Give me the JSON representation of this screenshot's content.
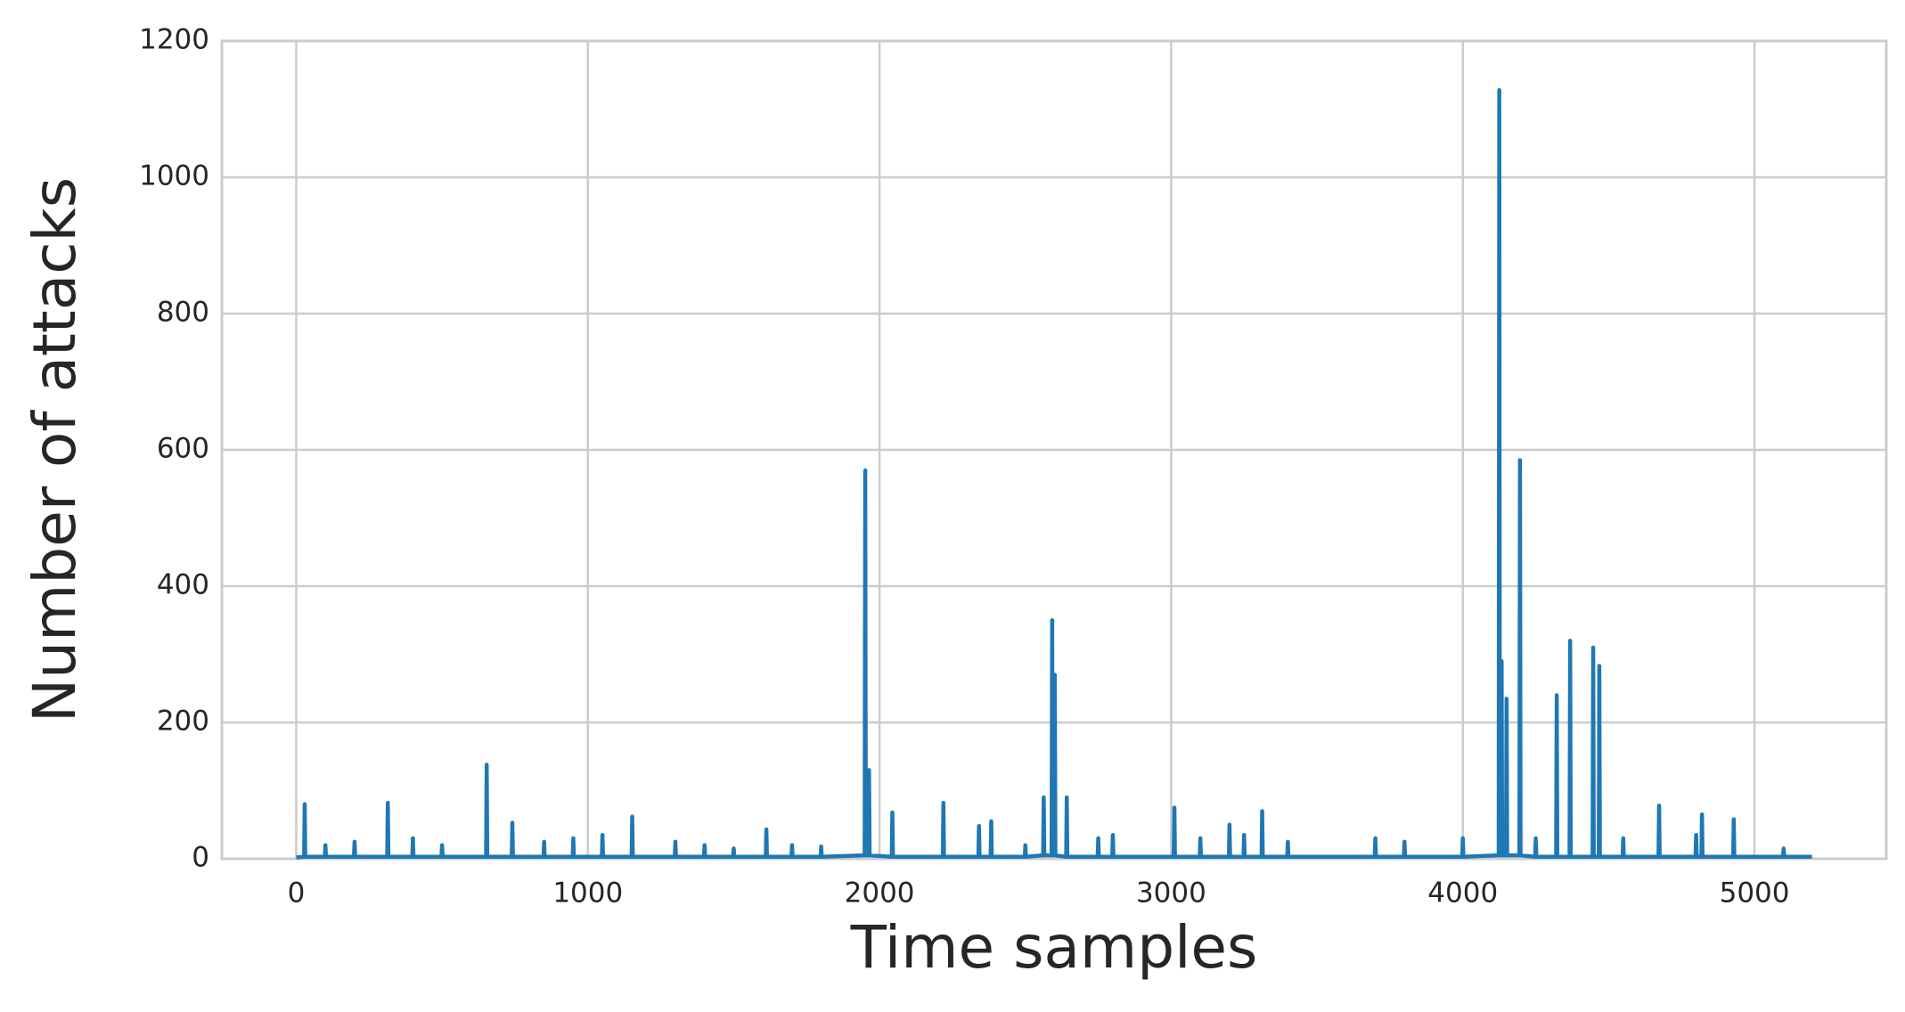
{
  "chart_data": {
    "type": "line",
    "xlabel": "Time samples",
    "ylabel": "Number of attacks",
    "x": [
      0,
      27,
      29,
      31,
      98,
      100,
      102,
      198,
      200,
      202,
      312,
      314,
      316,
      398,
      400,
      402,
      498,
      500,
      502,
      651,
      653,
      655,
      739,
      741,
      743,
      848,
      850,
      852,
      948,
      950,
      952,
      1048,
      1050,
      1052,
      1150,
      1152,
      1154,
      1298,
      1300,
      1302,
      1398,
      1400,
      1402,
      1498,
      1500,
      1502,
      1610,
      1612,
      1614,
      1698,
      1700,
      1702,
      1798,
      1800,
      1802,
      1949,
      1951,
      1953,
      1962,
      1964,
      1966,
      2042,
      2044,
      2046,
      2217,
      2219,
      2221,
      2339,
      2341,
      2343,
      2381,
      2383,
      2385,
      2498,
      2500,
      2502,
      2561,
      2563,
      2565,
      2590,
      2592,
      2594,
      2599,
      2601,
      2603,
      2640,
      2642,
      2644,
      2748,
      2750,
      2752,
      2798,
      2800,
      2802,
      3009,
      3011,
      3013,
      3098,
      3100,
      3102,
      3198,
      3200,
      3202,
      3248,
      3250,
      3252,
      3310,
      3312,
      3314,
      3398,
      3400,
      3402,
      3698,
      3700,
      3702,
      3798,
      3800,
      3802,
      3998,
      4000,
      4002,
      4123,
      4125,
      4127,
      4131,
      4133,
      4135,
      4148,
      4150,
      4152,
      4194,
      4196,
      4198,
      4248,
      4250,
      4252,
      4320,
      4322,
      4324,
      4366,
      4368,
      4370,
      4445,
      4447,
      4449,
      4466,
      4468,
      4470,
      4548,
      4550,
      4552,
      4671,
      4673,
      4675,
      4798,
      4800,
      4802,
      4818,
      4820,
      4822,
      4927,
      4929,
      4931,
      5098,
      5100,
      5102,
      5197
    ],
    "series": [
      {
        "color": "#1f77b4",
        "values": [
          2,
          3,
          80,
          3,
          3,
          20,
          3,
          3,
          25,
          3,
          3,
          82,
          3,
          3,
          30,
          3,
          3,
          20,
          3,
          3,
          138,
          3,
          3,
          53,
          3,
          3,
          25,
          3,
          3,
          30,
          3,
          3,
          35,
          3,
          3,
          62,
          3,
          3,
          25,
          3,
          3,
          20,
          3,
          3,
          15,
          3,
          3,
          43,
          3,
          3,
          20,
          3,
          3,
          18,
          3,
          5,
          570,
          5,
          5,
          130,
          5,
          3,
          68,
          3,
          3,
          82,
          3,
          3,
          48,
          3,
          3,
          55,
          3,
          3,
          20,
          3,
          5,
          90,
          5,
          5,
          350,
          5,
          5,
          270,
          5,
          3,
          90,
          3,
          3,
          30,
          3,
          3,
          35,
          3,
          3,
          75,
          3,
          3,
          30,
          3,
          3,
          50,
          3,
          3,
          35,
          3,
          3,
          70,
          3,
          3,
          25,
          3,
          3,
          30,
          3,
          3,
          25,
          3,
          3,
          30,
          3,
          5,
          1128,
          5,
          5,
          290,
          5,
          5,
          235,
          5,
          5,
          585,
          5,
          3,
          30,
          3,
          3,
          240,
          3,
          3,
          320,
          3,
          3,
          310,
          3,
          3,
          283,
          3,
          3,
          30,
          3,
          3,
          78,
          3,
          3,
          35,
          3,
          3,
          65,
          3,
          3,
          58,
          3,
          3,
          15,
          3,
          3
        ]
      }
    ],
    "xlim": [
      -255,
      5452
    ],
    "ylim": [
      0,
      1200
    ],
    "xticks": [
      0,
      1000,
      2000,
      3000,
      4000,
      5000
    ],
    "yticks": [
      0,
      200,
      400,
      600,
      800,
      1000,
      1200
    ],
    "grid": true
  }
}
